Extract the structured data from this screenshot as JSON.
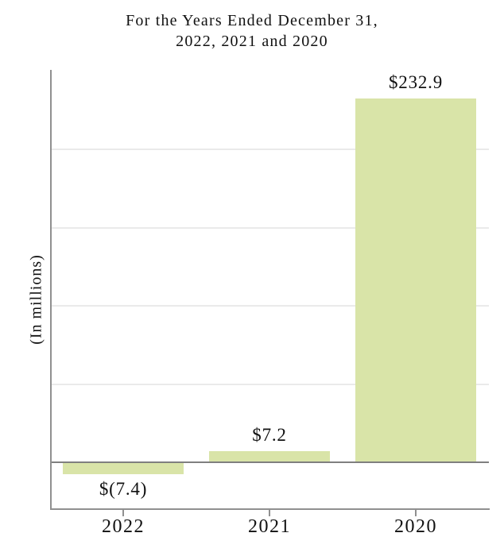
{
  "chart_data": {
    "type": "bar",
    "title_line1": "For the Years Ended December 31,",
    "title_line2": "2022, 2021 and 2020",
    "ylabel": "(In millions)",
    "categories": [
      "2022",
      "2021",
      "2020"
    ],
    "values": [
      -7.4,
      7.2,
      232.9
    ],
    "labels": [
      "$(7.4)",
      "$7.2",
      "$232.9"
    ],
    "ylim": [
      -30,
      251
    ],
    "gridline_values": [
      50,
      100,
      150,
      200
    ],
    "grid_on": true,
    "legend": "none",
    "y_tick_labels": "none",
    "bar_color": "#d9e4a8",
    "grid_color": "#eaeaea",
    "zero_line_color": "#7f7f7f",
    "axis_color": "#909090",
    "text_color": "#111111"
  }
}
